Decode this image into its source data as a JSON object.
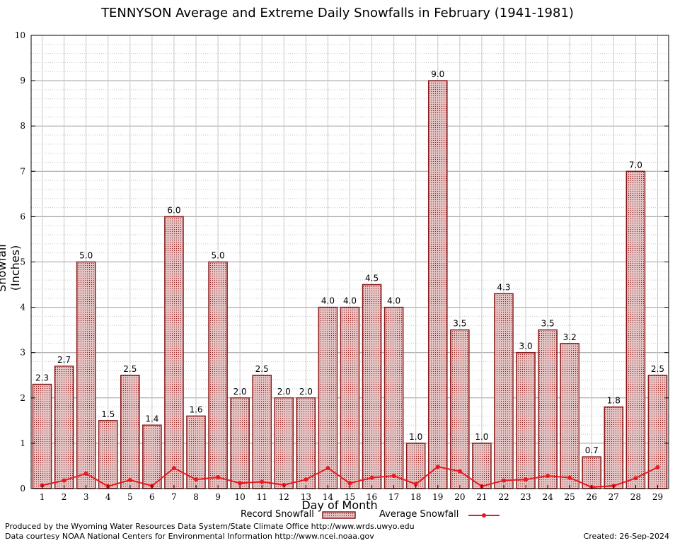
{
  "chart_title": "TENNYSON Average and Extreme Daily Snowfalls in February (1941-1981)",
  "footer": {
    "produced_by": "Produced by the Wyoming Water Resources Data System/State Climate Office http://www.wrds.uwyo.edu",
    "courtesy": "Data courtesy NOAA National Centers for Environmental Information http://www.ncei.noaa.gov",
    "created": "Created:  26-Sep-2024"
  },
  "colors": {
    "record_bar": "#8b1a1a",
    "average_line": "#e8191f"
  },
  "chart_data": {
    "type": "bar",
    "title": "TENNYSON Average and Extreme Daily Snowfalls in February (1941-1981)",
    "xlabel": "Day of Month",
    "ylabel": "Snowfall (Inches)",
    "ylim": [
      0,
      10
    ],
    "yticks": [
      0,
      1,
      2,
      3,
      4,
      5,
      6,
      7,
      8,
      9,
      10
    ],
    "grid": true,
    "legend_position": "bottom",
    "categories": [
      "1",
      "2",
      "3",
      "4",
      "5",
      "6",
      "7",
      "8",
      "9",
      "10",
      "11",
      "12",
      "13",
      "14",
      "15",
      "16",
      "17",
      "18",
      "19",
      "20",
      "21",
      "22",
      "23",
      "24",
      "25",
      "26",
      "27",
      "28",
      "29"
    ],
    "series": [
      {
        "name": "Record Snowfall",
        "kind": "bar",
        "values": [
          2.3,
          2.7,
          5.0,
          1.5,
          2.5,
          1.4,
          6.0,
          1.6,
          5.0,
          2.0,
          2.5,
          2.0,
          2.0,
          4.0,
          4.0,
          4.5,
          4.0,
          1.0,
          9.0,
          3.5,
          1.0,
          4.3,
          3.0,
          3.5,
          3.2,
          0.7,
          1.8,
          7.0,
          2.5
        ],
        "labels": [
          "2.3",
          "2.7",
          "5.0",
          "1.5",
          "2.5",
          "1.4",
          "6.0",
          "1.6",
          "5.0",
          "2.0",
          "2.5",
          "2.0",
          "2.0",
          "4.0",
          "4.0",
          "4.5",
          "4.0",
          "1.0",
          "9.0",
          "3.5",
          "1.0",
          "4.3",
          "3.0",
          "3.5",
          "3.2",
          "0.7",
          "1.8",
          "7.0",
          "2.5"
        ]
      },
      {
        "name": "Average Snowfall",
        "kind": "line",
        "values": [
          0.07,
          0.18,
          0.33,
          0.05,
          0.19,
          0.06,
          0.45,
          0.2,
          0.25,
          0.12,
          0.15,
          0.08,
          0.2,
          0.45,
          0.12,
          0.24,
          0.28,
          0.1,
          0.48,
          0.38,
          0.05,
          0.18,
          0.2,
          0.28,
          0.24,
          0.03,
          0.06,
          0.23,
          0.47
        ]
      }
    ]
  }
}
